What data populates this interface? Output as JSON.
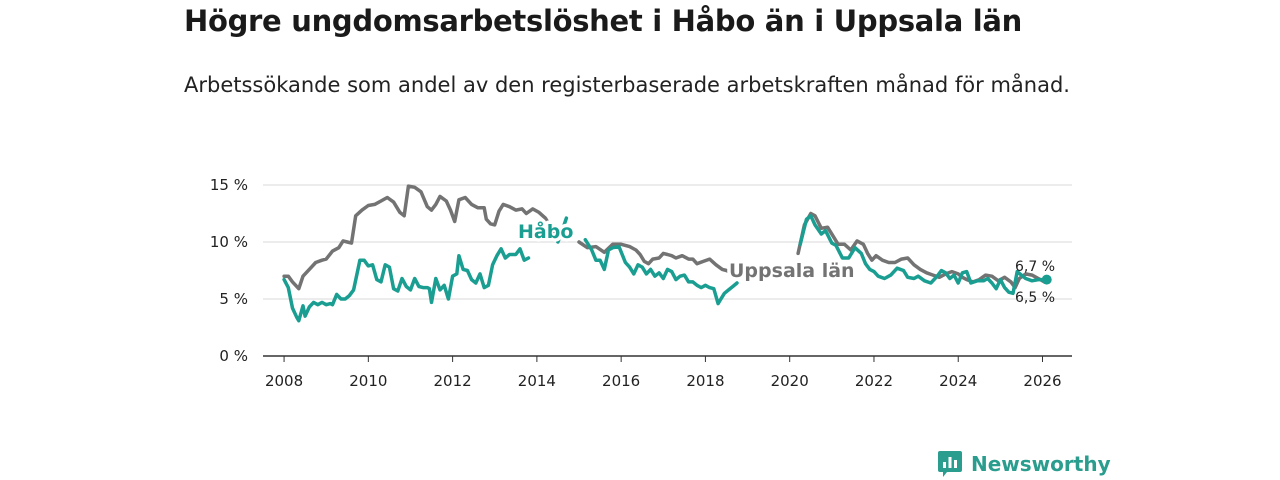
{
  "chart_data": {
    "type": "line",
    "title": "Högre ungdomsarbetslöshet i Håbo än i Uppsala län",
    "subtitle": "Arbetssökande som andel av den registerbaserade arbetskraften månad för månad.",
    "xlabel": "",
    "ylabel": "",
    "xlim": [
      2007.5,
      2026.7
    ],
    "ylim": [
      0,
      15
    ],
    "x_ticks": [
      2008,
      2010,
      2012,
      2014,
      2016,
      2018,
      2020,
      2022,
      2024,
      2026
    ],
    "x_tick_labels": [
      "2008",
      "2010",
      "2012",
      "2014",
      "2016",
      "2018",
      "2020",
      "2022",
      "2024",
      "2026"
    ],
    "y_ticks": [
      0,
      5,
      10,
      15
    ],
    "y_tick_labels": [
      "0 %",
      "5 %",
      "10 %",
      "15 %"
    ],
    "grid": true,
    "series": [
      {
        "name": "Uppsala län",
        "label": "Uppsala län",
        "color": "#737373",
        "end_label": "6,5 %",
        "points": [
          [
            2008.0,
            7.0
          ],
          [
            2008.1,
            7.0
          ],
          [
            2008.2,
            6.5
          ],
          [
            2008.35,
            5.9
          ],
          [
            2008.45,
            7.0
          ],
          [
            2008.6,
            7.6
          ],
          [
            2008.75,
            8.2
          ],
          [
            2008.9,
            8.4
          ],
          [
            2009.0,
            8.5
          ],
          [
            2009.15,
            9.2
          ],
          [
            2009.3,
            9.5
          ],
          [
            2009.4,
            10.1
          ],
          [
            2009.5,
            10.0
          ],
          [
            2009.6,
            9.9
          ],
          [
            2009.7,
            12.3
          ],
          [
            2009.85,
            12.8
          ],
          [
            2010.0,
            13.2
          ],
          [
            2010.15,
            13.3
          ],
          [
            2010.3,
            13.6
          ],
          [
            2010.45,
            13.9
          ],
          [
            2010.6,
            13.5
          ],
          [
            2010.75,
            12.6
          ],
          [
            2010.85,
            12.3
          ],
          [
            2010.95,
            14.9
          ],
          [
            2011.1,
            14.8
          ],
          [
            2011.25,
            14.4
          ],
          [
            2011.4,
            13.1
          ],
          [
            2011.5,
            12.8
          ],
          [
            2011.6,
            13.3
          ],
          [
            2011.7,
            14.0
          ],
          [
            2011.85,
            13.6
          ],
          [
            2011.95,
            12.8
          ],
          [
            2012.05,
            11.8
          ],
          [
            2012.15,
            13.7
          ],
          [
            2012.3,
            13.9
          ],
          [
            2012.45,
            13.3
          ],
          [
            2012.6,
            13.0
          ],
          [
            2012.75,
            13.0
          ],
          [
            2012.8,
            12.0
          ],
          [
            2012.9,
            11.6
          ],
          [
            2013.0,
            11.5
          ],
          [
            2013.1,
            12.7
          ],
          [
            2013.2,
            13.3
          ],
          [
            2013.35,
            13.1
          ],
          [
            2013.5,
            12.8
          ],
          [
            2013.65,
            12.9
          ],
          [
            2013.75,
            12.5
          ],
          [
            2013.9,
            12.9
          ],
          [
            2014.05,
            12.6
          ],
          [
            2014.2,
            12.1
          ],
          [
            2014.35,
            11.2
          ],
          [
            2014.45,
            10.5
          ]
        ],
        "points_b": [
          [
            2015.0,
            10.0
          ],
          [
            2015.2,
            9.5
          ],
          [
            2015.4,
            9.6
          ],
          [
            2015.6,
            9.1
          ],
          [
            2015.8,
            9.8
          ],
          [
            2016.0,
            9.8
          ],
          [
            2016.2,
            9.6
          ],
          [
            2016.35,
            9.3
          ],
          [
            2016.45,
            8.9
          ],
          [
            2016.55,
            8.3
          ],
          [
            2016.65,
            8.1
          ],
          [
            2016.75,
            8.5
          ],
          [
            2016.9,
            8.6
          ],
          [
            2017.0,
            9.0
          ],
          [
            2017.1,
            8.9
          ],
          [
            2017.2,
            8.8
          ],
          [
            2017.3,
            8.6
          ],
          [
            2017.45,
            8.8
          ],
          [
            2017.6,
            8.5
          ],
          [
            2017.7,
            8.5
          ],
          [
            2017.8,
            8.1
          ],
          [
            2017.95,
            8.3
          ],
          [
            2018.1,
            8.5
          ],
          [
            2018.25,
            8.0
          ],
          [
            2018.4,
            7.6
          ],
          [
            2018.5,
            7.5
          ],
          [
            2018.6,
            7.3
          ],
          [
            2018.7,
            7.1
          ],
          [
            2018.75,
            7.1
          ]
        ],
        "points_c": [
          [
            2020.2,
            9.0
          ],
          [
            2020.35,
            11.5
          ],
          [
            2020.5,
            12.5
          ],
          [
            2020.6,
            12.3
          ],
          [
            2020.75,
            11.2
          ],
          [
            2020.9,
            11.3
          ],
          [
            2021.05,
            10.4
          ],
          [
            2021.15,
            9.8
          ],
          [
            2021.3,
            9.8
          ],
          [
            2021.45,
            9.3
          ],
          [
            2021.6,
            10.1
          ],
          [
            2021.75,
            9.8
          ],
          [
            2021.85,
            9.0
          ],
          [
            2021.95,
            8.4
          ],
          [
            2022.05,
            8.8
          ],
          [
            2022.2,
            8.4
          ],
          [
            2022.35,
            8.2
          ],
          [
            2022.5,
            8.2
          ],
          [
            2022.65,
            8.5
          ],
          [
            2022.8,
            8.6
          ],
          [
            2022.95,
            8.0
          ],
          [
            2023.1,
            7.6
          ],
          [
            2023.25,
            7.3
          ],
          [
            2023.4,
            7.1
          ],
          [
            2023.55,
            6.9
          ],
          [
            2023.7,
            7.2
          ],
          [
            2023.85,
            7.4
          ],
          [
            2024.0,
            7.2
          ],
          [
            2024.1,
            6.9
          ],
          [
            2024.2,
            6.7
          ],
          [
            2024.35,
            6.5
          ],
          [
            2024.5,
            6.7
          ],
          [
            2024.65,
            7.1
          ],
          [
            2024.8,
            7.0
          ],
          [
            2024.95,
            6.6
          ],
          [
            2025.1,
            6.9
          ],
          [
            2025.25,
            6.5
          ],
          [
            2025.35,
            6.0
          ],
          [
            2025.45,
            6.8
          ],
          [
            2025.6,
            7.2
          ],
          [
            2025.75,
            7.1
          ],
          [
            2025.9,
            6.8
          ],
          [
            2026.0,
            6.6
          ],
          [
            2026.05,
            6.5
          ]
        ]
      },
      {
        "name": "Håbo",
        "label": "Håbo",
        "color": "#1a9e92",
        "end_label": "6,7 %",
        "points": [
          [
            2008.0,
            6.7
          ],
          [
            2008.1,
            6.0
          ],
          [
            2008.2,
            4.2
          ],
          [
            2008.3,
            3.4
          ],
          [
            2008.35,
            3.1
          ],
          [
            2008.45,
            4.4
          ],
          [
            2008.5,
            3.5
          ],
          [
            2008.6,
            4.3
          ],
          [
            2008.7,
            4.7
          ],
          [
            2008.8,
            4.5
          ],
          [
            2008.9,
            4.7
          ],
          [
            2009.0,
            4.5
          ],
          [
            2009.1,
            4.6
          ],
          [
            2009.15,
            4.5
          ],
          [
            2009.25,
            5.4
          ],
          [
            2009.35,
            5.0
          ],
          [
            2009.45,
            5.0
          ],
          [
            2009.55,
            5.3
          ],
          [
            2009.65,
            5.8
          ],
          [
            2009.8,
            8.4
          ],
          [
            2009.9,
            8.4
          ],
          [
            2010.0,
            7.9
          ],
          [
            2010.1,
            8.0
          ],
          [
            2010.2,
            6.7
          ],
          [
            2010.3,
            6.5
          ],
          [
            2010.4,
            8.0
          ],
          [
            2010.5,
            7.8
          ],
          [
            2010.6,
            5.9
          ],
          [
            2010.7,
            5.7
          ],
          [
            2010.8,
            6.8
          ],
          [
            2010.9,
            6.1
          ],
          [
            2011.0,
            5.8
          ],
          [
            2011.1,
            6.8
          ],
          [
            2011.2,
            6.1
          ],
          [
            2011.3,
            6.0
          ],
          [
            2011.4,
            6.0
          ],
          [
            2011.45,
            5.9
          ],
          [
            2011.5,
            4.7
          ],
          [
            2011.6,
            6.8
          ],
          [
            2011.7,
            5.8
          ],
          [
            2011.8,
            6.2
          ],
          [
            2011.9,
            5.0
          ],
          [
            2012.0,
            7.0
          ],
          [
            2012.1,
            7.2
          ],
          [
            2012.15,
            8.8
          ],
          [
            2012.25,
            7.6
          ],
          [
            2012.35,
            7.5
          ],
          [
            2012.45,
            6.7
          ],
          [
            2012.55,
            6.4
          ],
          [
            2012.65,
            7.2
          ],
          [
            2012.75,
            6.0
          ],
          [
            2012.85,
            6.2
          ],
          [
            2012.95,
            8.0
          ],
          [
            2013.05,
            8.8
          ],
          [
            2013.15,
            9.4
          ],
          [
            2013.25,
            8.6
          ],
          [
            2013.35,
            8.9
          ],
          [
            2013.5,
            8.9
          ],
          [
            2013.6,
            9.4
          ],
          [
            2013.7,
            8.4
          ],
          [
            2013.8,
            8.6
          ]
        ],
        "points_b": [
          [
            2014.5,
            10.0
          ],
          [
            2014.6,
            11.0
          ],
          [
            2014.7,
            12.1
          ]
        ],
        "points_c": [
          [
            2015.15,
            10.2
          ],
          [
            2015.3,
            9.3
          ],
          [
            2015.4,
            8.4
          ],
          [
            2015.5,
            8.4
          ],
          [
            2015.6,
            7.6
          ],
          [
            2015.7,
            9.3
          ],
          [
            2015.8,
            9.5
          ],
          [
            2015.95,
            9.6
          ],
          [
            2016.1,
            8.2
          ],
          [
            2016.2,
            7.8
          ],
          [
            2016.3,
            7.2
          ],
          [
            2016.4,
            8.0
          ],
          [
            2016.5,
            7.8
          ],
          [
            2016.6,
            7.2
          ],
          [
            2016.7,
            7.6
          ],
          [
            2016.8,
            7.0
          ],
          [
            2016.9,
            7.3
          ],
          [
            2017.0,
            6.8
          ],
          [
            2017.1,
            7.6
          ],
          [
            2017.2,
            7.4
          ],
          [
            2017.3,
            6.7
          ],
          [
            2017.4,
            7.0
          ],
          [
            2017.5,
            7.1
          ],
          [
            2017.6,
            6.5
          ],
          [
            2017.7,
            6.5
          ],
          [
            2017.8,
            6.2
          ],
          [
            2017.9,
            6.0
          ],
          [
            2018.0,
            6.2
          ],
          [
            2018.1,
            6.0
          ],
          [
            2018.2,
            5.9
          ],
          [
            2018.3,
            4.6
          ],
          [
            2018.35,
            4.9
          ],
          [
            2018.45,
            5.5
          ],
          [
            2018.55,
            5.8
          ],
          [
            2018.65,
            6.1
          ],
          [
            2018.75,
            6.4
          ]
        ],
        "points_d": [
          [
            2020.25,
            9.8
          ],
          [
            2020.4,
            12.0
          ],
          [
            2020.5,
            12.3
          ],
          [
            2020.6,
            11.5
          ],
          [
            2020.75,
            10.7
          ],
          [
            2020.85,
            11.0
          ],
          [
            2021.0,
            9.9
          ],
          [
            2021.1,
            9.7
          ],
          [
            2021.25,
            8.6
          ],
          [
            2021.4,
            8.6
          ],
          [
            2021.55,
            9.5
          ],
          [
            2021.7,
            9.0
          ],
          [
            2021.8,
            8.1
          ],
          [
            2021.9,
            7.6
          ],
          [
            2022.0,
            7.4
          ],
          [
            2022.1,
            7.0
          ],
          [
            2022.25,
            6.8
          ],
          [
            2022.4,
            7.1
          ],
          [
            2022.55,
            7.7
          ],
          [
            2022.7,
            7.5
          ],
          [
            2022.8,
            6.9
          ],
          [
            2022.95,
            6.8
          ],
          [
            2023.05,
            7.0
          ],
          [
            2023.2,
            6.6
          ],
          [
            2023.35,
            6.4
          ],
          [
            2023.5,
            7.0
          ],
          [
            2023.6,
            7.5
          ],
          [
            2023.7,
            7.3
          ],
          [
            2023.8,
            6.8
          ],
          [
            2023.9,
            7.1
          ],
          [
            2024.0,
            6.4
          ],
          [
            2024.1,
            7.3
          ],
          [
            2024.2,
            7.4
          ],
          [
            2024.3,
            6.4
          ],
          [
            2024.45,
            6.6
          ],
          [
            2024.6,
            6.6
          ],
          [
            2024.7,
            6.8
          ],
          [
            2024.8,
            6.4
          ],
          [
            2024.9,
            5.9
          ],
          [
            2025.0,
            6.7
          ],
          [
            2025.1,
            6.0
          ],
          [
            2025.2,
            5.6
          ],
          [
            2025.3,
            5.5
          ],
          [
            2025.4,
            7.4
          ],
          [
            2025.5,
            7.1
          ],
          [
            2025.6,
            6.8
          ],
          [
            2025.75,
            6.6
          ],
          [
            2025.9,
            6.7
          ],
          [
            2026.0,
            6.7
          ],
          [
            2026.1,
            6.7
          ]
        ]
      }
    ]
  },
  "footer": {
    "brand_name": "Newsworthy",
    "brand_color": "#2a9d8f",
    "icon": "newsworthy-logo-icon"
  }
}
